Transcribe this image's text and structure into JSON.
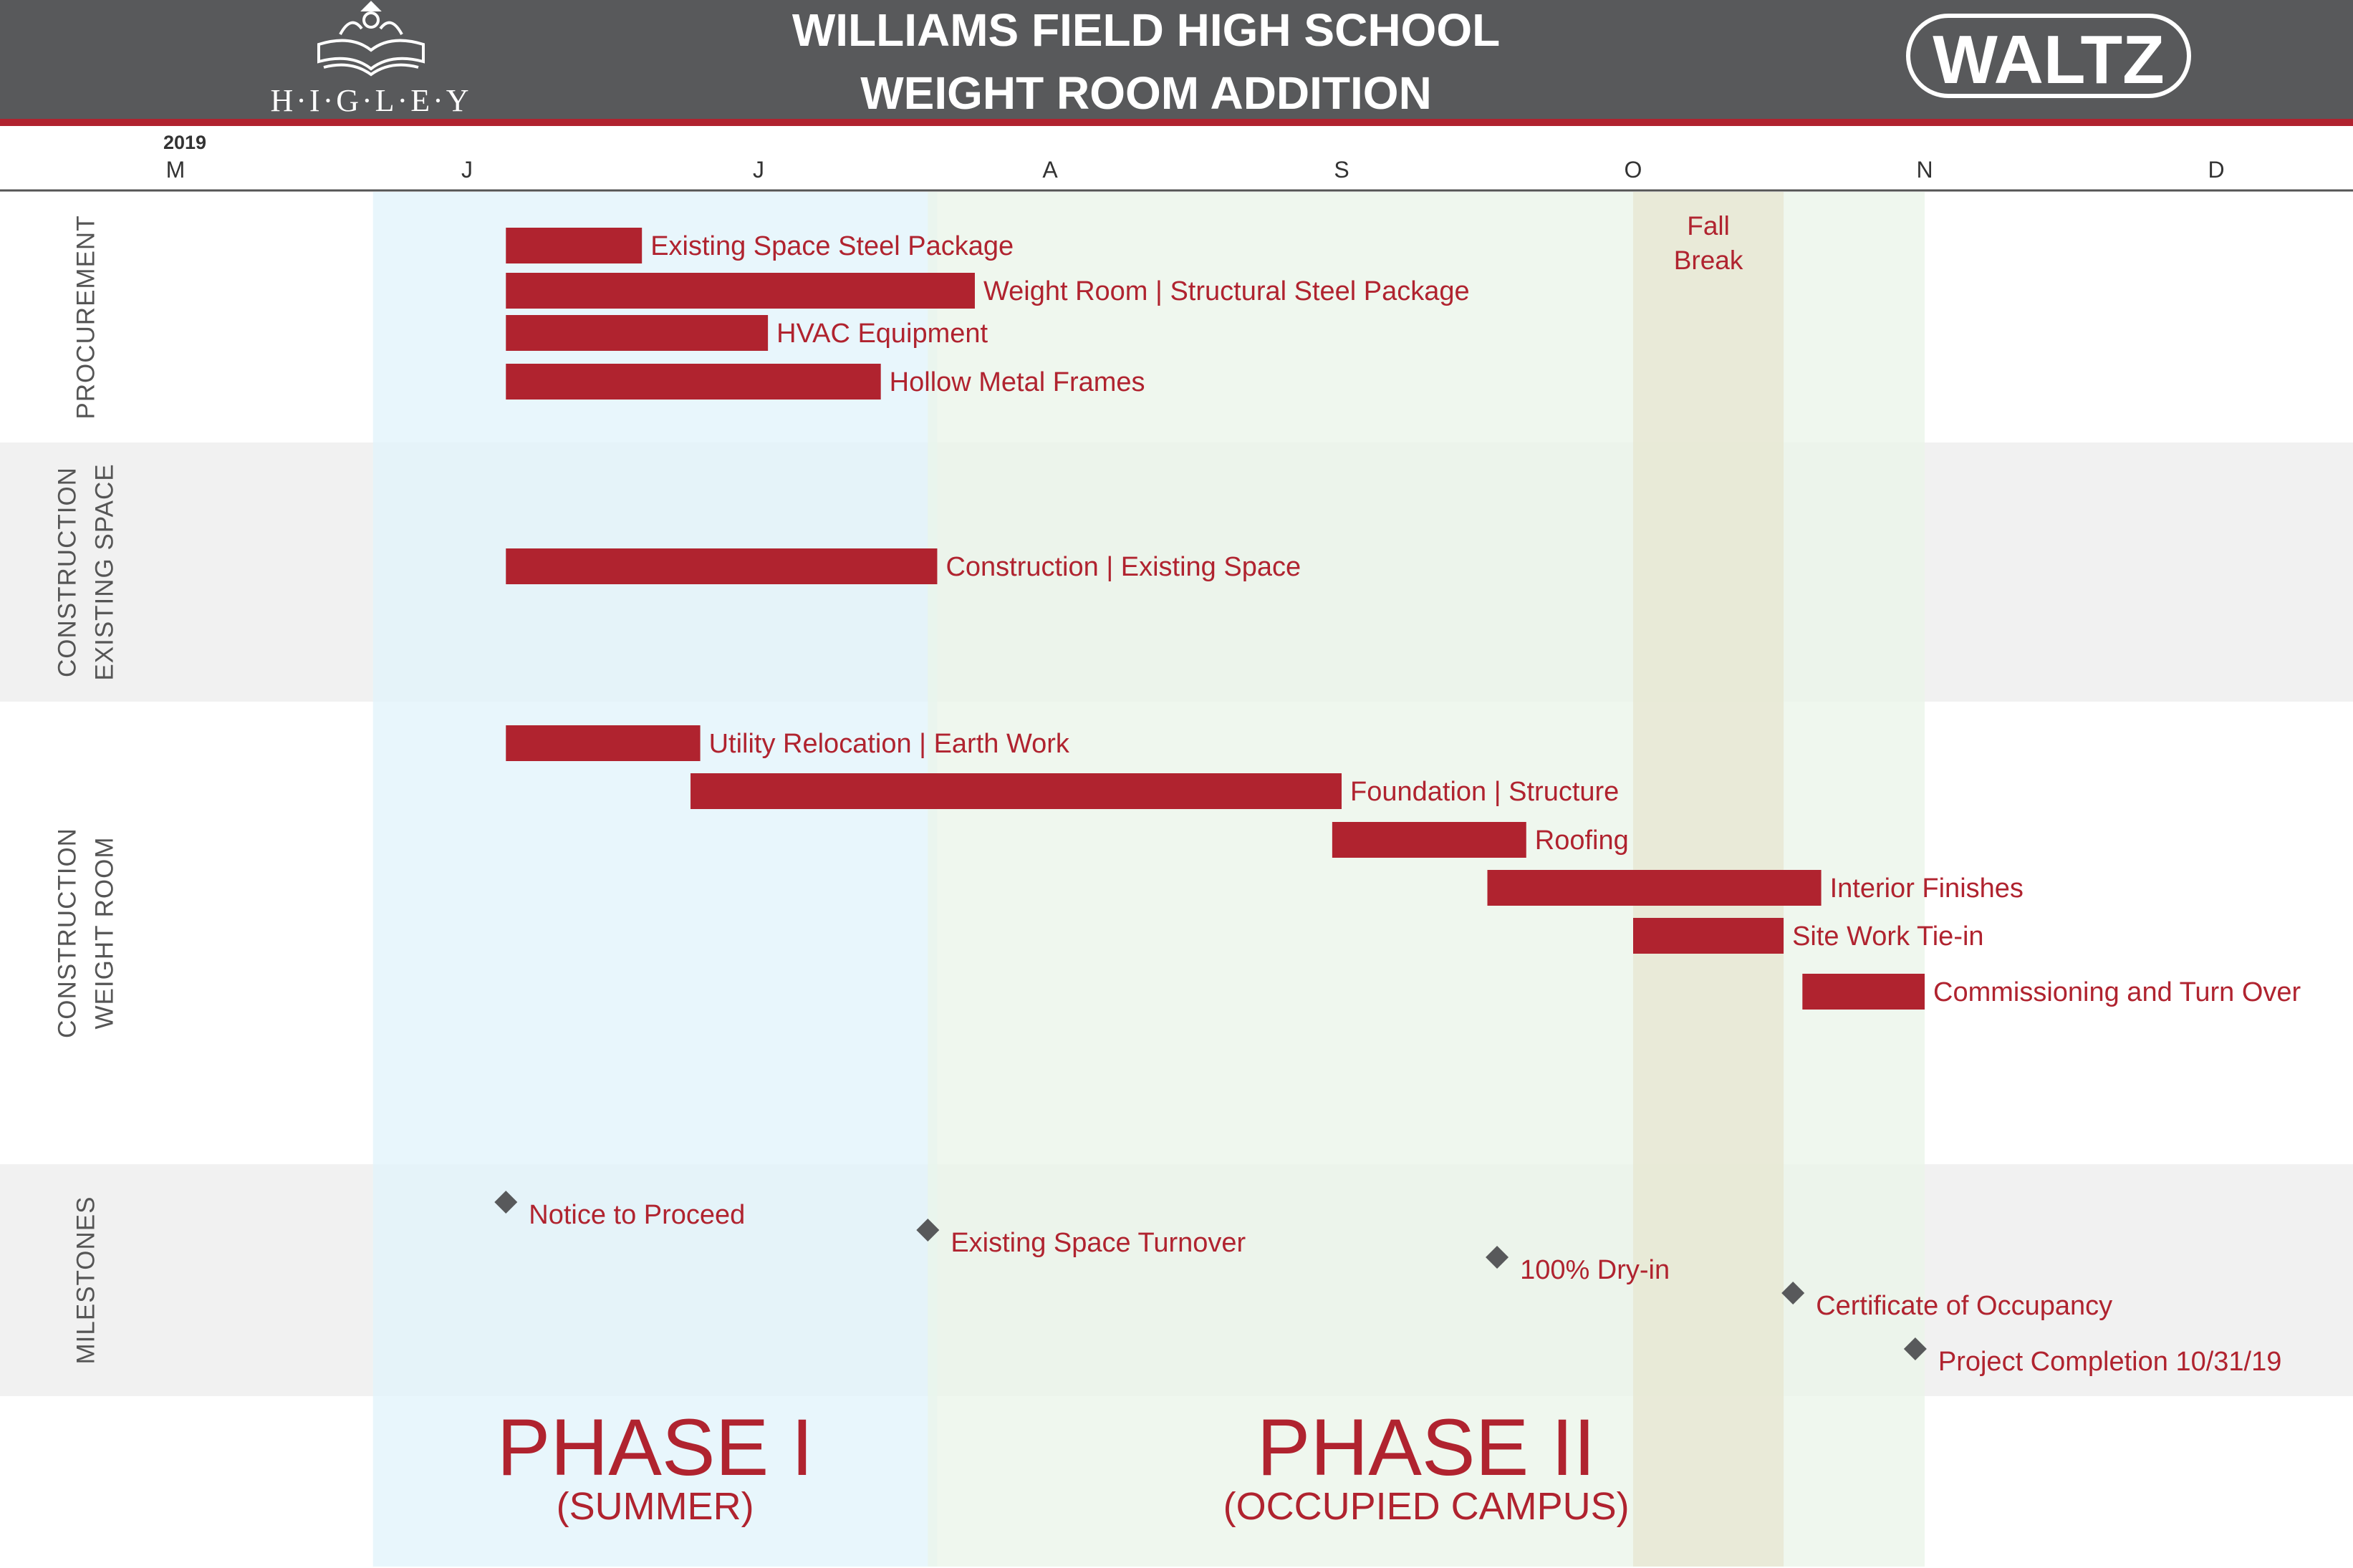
{
  "header": {
    "title_line1": "WILLIAMS FIELD HIGH SCHOOL",
    "title_line2": "WEIGHT ROOM ADDITION",
    "left_logo_text": "H·I·G·L·E·Y",
    "right_logo_text": "WALTZ"
  },
  "colors": {
    "header_bg": "#58595b",
    "accent": "#b0232f",
    "phase1_fill": "#e2f4fb",
    "phase2_fill": "#ebf5e9",
    "fall_break_fill": "#e8e8d4",
    "row_band": "#f1f1f1",
    "milestone": "#58595b"
  },
  "chart_data": {
    "type": "gantt",
    "year_label": "2019",
    "months": [
      {
        "label": "M",
        "start": "2019-05-01"
      },
      {
        "label": "J",
        "start": "2019-06-01"
      },
      {
        "label": "J",
        "start": "2019-07-01"
      },
      {
        "label": "A",
        "start": "2019-08-01"
      },
      {
        "label": "S",
        "start": "2019-09-01"
      },
      {
        "label": "O",
        "start": "2019-10-01"
      },
      {
        "label": "N",
        "start": "2019-11-01"
      },
      {
        "label": "D",
        "start": "2019-12-01"
      }
    ],
    "range": [
      "2019-05-01",
      "2019-12-31"
    ],
    "categories": [
      {
        "label": "PROCUREMENT",
        "band": false
      },
      {
        "label": "CONSTRUCTION|EXISTING SPACE",
        "band": true
      },
      {
        "label": "CONSTRUCTION|WEIGHT ROOM",
        "band": false
      },
      {
        "label": "MILESTONES",
        "band": true
      }
    ],
    "phases": [
      {
        "label": "PHASE I",
        "sublabel": "(SUMMER)",
        "start": "2019-05-22",
        "end": "2019-07-19"
      },
      {
        "label": "PHASE II",
        "sublabel": "(OCCUPIED CAMPUS)",
        "start": "2019-07-19",
        "end": "2019-10-31"
      }
    ],
    "fall_break": {
      "label1": "Fall",
      "label2": "Break",
      "start": "2019-10-01",
      "end": "2019-10-16"
    },
    "tasks": [
      {
        "category": 0,
        "label": "Existing Space Steel Package",
        "start": "2019-06-05",
        "end": "2019-06-18"
      },
      {
        "category": 0,
        "label": "Weight Room | Structural Steel Package",
        "start": "2019-06-05",
        "end": "2019-07-23"
      },
      {
        "category": 0,
        "label": "HVAC Equipment",
        "start": "2019-06-05",
        "end": "2019-07-01"
      },
      {
        "category": 0,
        "label": "Hollow Metal Frames",
        "start": "2019-06-05",
        "end": "2019-07-13"
      },
      {
        "category": 1,
        "label": "Construction | Existing Space",
        "start": "2019-06-05",
        "end": "2019-07-19"
      },
      {
        "category": 2,
        "label": "Utility Relocation | Earth Work",
        "start": "2019-06-05",
        "end": "2019-06-24"
      },
      {
        "category": 2,
        "label": "Foundation | Structure",
        "start": "2019-06-24",
        "end": "2019-08-31"
      },
      {
        "category": 2,
        "label": "Roofing",
        "start": "2019-08-31",
        "end": "2019-09-19"
      },
      {
        "category": 2,
        "label": "Interior Finishes",
        "start": "2019-09-16",
        "end": "2019-10-20"
      },
      {
        "category": 2,
        "label": "Site Work Tie-in",
        "start": "2019-10-01",
        "end": "2019-10-16"
      },
      {
        "category": 2,
        "label": "Commissioning and Turn Over",
        "start": "2019-10-19",
        "end": "2019-10-31"
      }
    ],
    "milestones": [
      {
        "label": "Notice to Proceed",
        "date": "2019-06-05"
      },
      {
        "label": "Existing Space Turnover",
        "date": "2019-07-19"
      },
      {
        "label": "100% Dry-in",
        "date": "2019-09-17"
      },
      {
        "label": "Certificate of Occupancy",
        "date": "2019-10-18"
      },
      {
        "label": "Project Completion  10/31/19",
        "date": "2019-10-31"
      }
    ]
  }
}
